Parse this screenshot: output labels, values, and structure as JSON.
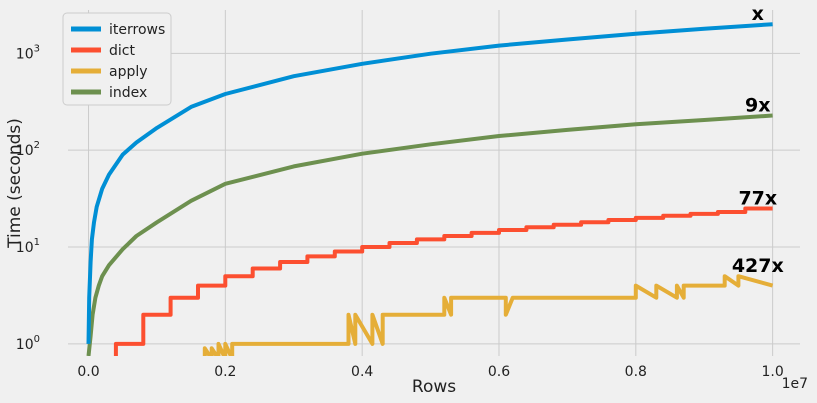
{
  "chart_data": {
    "type": "line",
    "xlabel": "Rows",
    "ylabel": "Time (seconds)",
    "x_offset_text": "1e7",
    "xlim": [
      -0.03,
      1.04
    ],
    "x_ticks": [
      0.0,
      0.2,
      0.4,
      0.6,
      0.8,
      1.0
    ],
    "x_tick_labels": [
      "0.0",
      "0.2",
      "0.4",
      "0.6",
      "0.8",
      "1.0"
    ],
    "yscale": "log",
    "ylim": [
      0.75,
      2800
    ],
    "y_ticks": [
      1,
      10,
      100,
      1000
    ],
    "y_tick_labels": [
      {
        "base": "10",
        "exp": "0"
      },
      {
        "base": "10",
        "exp": "1"
      },
      {
        "base": "10",
        "exp": "2"
      },
      {
        "base": "10",
        "exp": "3"
      }
    ],
    "grid": true,
    "legend_position": "top-left",
    "series": [
      {
        "name": "iterrows",
        "color": "#008fd5",
        "x": [
          0.0,
          0.001,
          0.003,
          0.005,
          0.008,
          0.012,
          0.02,
          0.03,
          0.05,
          0.07,
          0.1,
          0.15,
          0.2,
          0.3,
          0.4,
          0.5,
          0.6,
          0.7,
          0.8,
          0.9,
          1.0
        ],
        "y": [
          1,
          3,
          7,
          12,
          18,
          26,
          40,
          56,
          90,
          120,
          170,
          280,
          380,
          580,
          780,
          990,
          1200,
          1390,
          1590,
          1790,
          2000
        ]
      },
      {
        "name": "dict",
        "color": "#fc4f30",
        "x": [
          0.04,
          0.04,
          0.08,
          0.08,
          0.12,
          0.12,
          0.16,
          0.16,
          0.2,
          0.2,
          0.24,
          0.24,
          0.28,
          0.28,
          0.32,
          0.32,
          0.36,
          0.36,
          0.4,
          0.4,
          0.44,
          0.44,
          0.48,
          0.48,
          0.52,
          0.52,
          0.56,
          0.56,
          0.6,
          0.6,
          0.64,
          0.64,
          0.68,
          0.68,
          0.72,
          0.72,
          0.76,
          0.76,
          0.8,
          0.8,
          0.84,
          0.84,
          0.88,
          0.88,
          0.92,
          0.92,
          0.96,
          0.96,
          1.0
        ],
        "y": [
          0.7,
          1,
          1,
          2,
          2,
          3,
          3,
          4,
          4,
          5,
          5,
          6,
          6,
          7,
          7,
          8,
          8,
          9,
          9,
          10,
          10,
          11,
          11,
          12,
          12,
          13,
          13,
          14,
          14,
          15,
          15,
          16,
          16,
          17,
          17,
          18,
          18,
          19,
          19,
          20,
          20,
          21,
          21,
          22,
          22,
          23,
          23,
          25,
          25
        ]
      },
      {
        "name": "apply",
        "color": "#e5ae38",
        "x": [
          0.17,
          0.17,
          0.18,
          0.18,
          0.19,
          0.19,
          0.2,
          0.2,
          0.21,
          0.21,
          0.38,
          0.38,
          0.39,
          0.39,
          0.415,
          0.415,
          0.43,
          0.43,
          0.52,
          0.52,
          0.53,
          0.53,
          0.61,
          0.61,
          0.62,
          0.62,
          0.64,
          0.64,
          0.66,
          0.66,
          0.7,
          0.7,
          0.73,
          0.73,
          0.8,
          0.8,
          0.83,
          0.83,
          0.86,
          0.86,
          0.87,
          0.87,
          0.93,
          0.93,
          0.95,
          0.95,
          1.0
        ],
        "y": [
          0.7,
          0.9,
          0.7,
          0.9,
          0.7,
          1,
          0.7,
          1,
          0.7,
          1,
          1,
          2,
          1,
          2,
          1,
          2,
          1,
          2,
          2,
          3,
          2,
          3,
          3,
          2,
          3,
          3,
          3,
          3,
          3,
          3,
          3,
          3,
          3,
          3,
          3,
          4,
          3,
          4,
          3,
          4,
          3,
          4,
          4,
          5,
          4,
          5,
          4
        ]
      },
      {
        "name": "index",
        "color": "#6d904f",
        "x": [
          0.0,
          0.003,
          0.006,
          0.01,
          0.015,
          0.02,
          0.03,
          0.05,
          0.07,
          0.1,
          0.15,
          0.2,
          0.3,
          0.4,
          0.5,
          0.6,
          0.7,
          0.8,
          0.9,
          1.0
        ],
        "y": [
          0.75,
          1.2,
          2,
          3,
          4,
          5,
          6.5,
          9.5,
          13,
          18,
          30,
          45,
          68,
          92,
          115,
          140,
          162,
          185,
          205,
          228
        ]
      }
    ],
    "annotations": [
      {
        "text": "x",
        "x": 0.99,
        "y": 2000
      },
      {
        "text": "9x",
        "x": 0.99,
        "y": 228
      },
      {
        "text": "77x",
        "x": 0.99,
        "y": 25
      },
      {
        "text": "427x",
        "x": 0.99,
        "y": 5
      }
    ]
  }
}
